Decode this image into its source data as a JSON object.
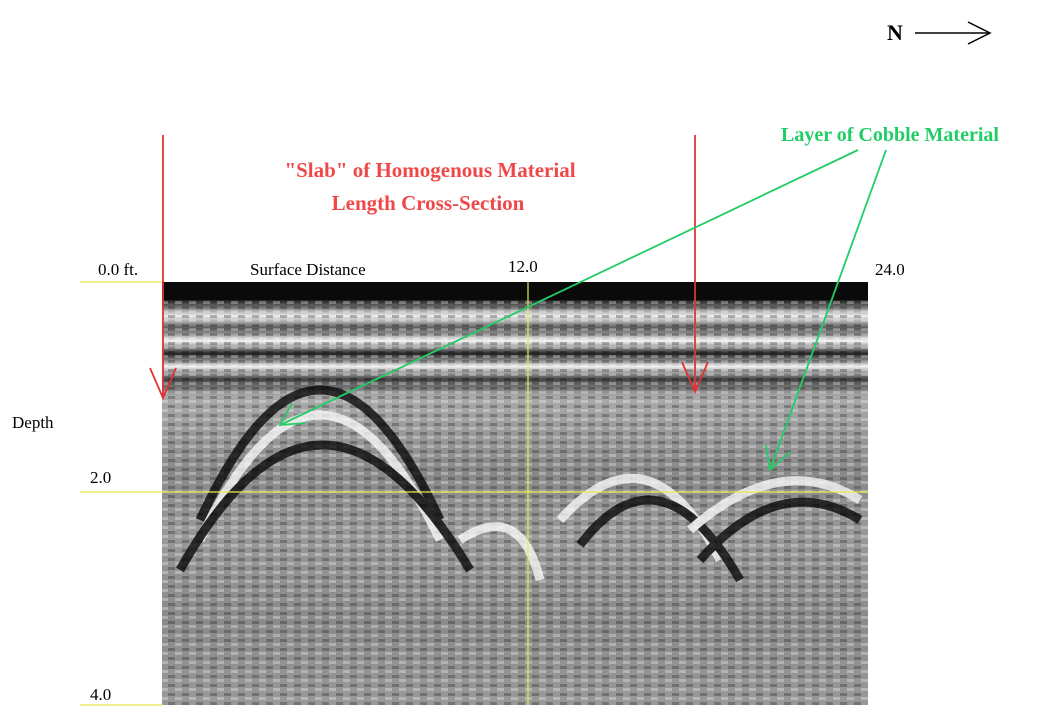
{
  "north_label": "N",
  "annotations": {
    "slab": [
      "\"Slab\" of Homogenous Material",
      "Length Cross-Section"
    ],
    "cobble": "Layer of Cobble Material"
  },
  "axes": {
    "x_title": "Surface Distance",
    "x_labels": [
      "0.0 ft.",
      "12.0",
      "24.0"
    ],
    "y_title": "Depth",
    "y_labels": [
      "2.0",
      "4.0"
    ]
  }
}
